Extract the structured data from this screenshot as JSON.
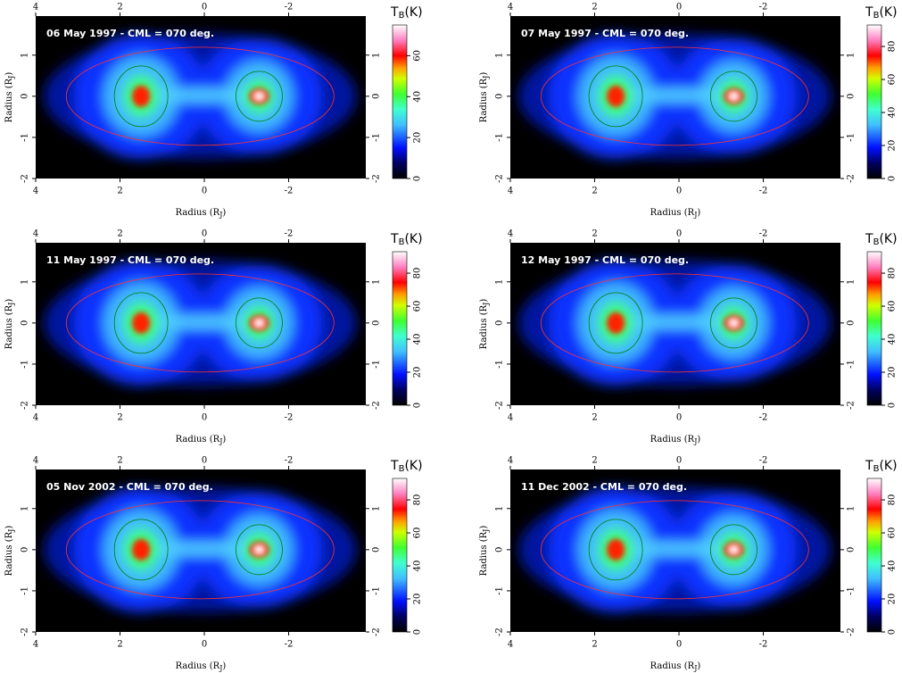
{
  "chart_data": [
    {
      "type": "heatmap",
      "title": "06 May 1997 - CML = 070 deg.",
      "xlabel": {
        "main": "Radius (R",
        "sub": "J",
        "end": ")"
      },
      "ylabel": {
        "main": "Radius (R",
        "sub": "J",
        "end": ")"
      },
      "xlim": [
        4,
        -3.83
      ],
      "xticks": [
        4,
        2,
        0,
        -2
      ],
      "ylim": [
        -2,
        1.95
      ],
      "yticks": [
        -2,
        -1,
        0,
        1
      ],
      "colorbar": {
        "label": {
          "main": "T",
          "sub": "B",
          "end": "(K)"
        },
        "lim": [
          0,
          75
        ],
        "ticks": [
          0,
          20,
          40,
          60
        ]
      }
    },
    {
      "type": "heatmap",
      "title": "07 May 1997 - CML = 070 deg.",
      "xlabel": {
        "main": "Radius (R",
        "sub": "J",
        "end": ")"
      },
      "ylabel": {
        "main": "Radius (R",
        "sub": "J",
        "end": ")"
      },
      "xlim": [
        4,
        -3.83
      ],
      "xticks": [
        4,
        2,
        0,
        -2
      ],
      "ylim": [
        -2,
        1.95
      ],
      "yticks": [
        -2,
        -1,
        0,
        1
      ],
      "colorbar": {
        "label": {
          "main": "T",
          "sub": "B",
          "end": "(K)"
        },
        "lim": [
          0,
          93
        ],
        "ticks": [
          0,
          20,
          40,
          60,
          80
        ]
      }
    },
    {
      "type": "heatmap",
      "title": "11 May 1997 - CML = 070 deg.",
      "xlabel": {
        "main": "Radius (R",
        "sub": "J",
        "end": ")"
      },
      "ylabel": {
        "main": "Radius (R",
        "sub": "J",
        "end": ")"
      },
      "xlim": [
        4,
        -3.83
      ],
      "xticks": [
        4,
        2,
        0,
        -2
      ],
      "ylim": [
        -2,
        1.95
      ],
      "yticks": [
        -2,
        -1,
        0,
        1
      ],
      "colorbar": {
        "label": {
          "main": "T",
          "sub": "B",
          "end": "(K)"
        },
        "lim": [
          0,
          93
        ],
        "ticks": [
          0,
          20,
          40,
          60,
          80
        ]
      }
    },
    {
      "type": "heatmap",
      "title": "12 May 1997 - CML = 070 deg.",
      "xlabel": {
        "main": "Radius (R",
        "sub": "J",
        "end": ")"
      },
      "ylabel": {
        "main": "Radius (R",
        "sub": "J",
        "end": ")"
      },
      "xlim": [
        4,
        -3.83
      ],
      "xticks": [
        4,
        2,
        0,
        -2
      ],
      "ylim": [
        -2,
        1.95
      ],
      "yticks": [
        -2,
        -1,
        0,
        1
      ],
      "colorbar": {
        "label": {
          "main": "T",
          "sub": "B",
          "end": "(K)"
        },
        "lim": [
          0,
          93
        ],
        "ticks": [
          0,
          20,
          40,
          60,
          80
        ]
      }
    },
    {
      "type": "heatmap",
      "title": "05 Nov 2002 - CML = 070 deg.",
      "xlabel": {
        "main": "Radius (R",
        "sub": "J",
        "end": ")"
      },
      "ylabel": {
        "main": "Radius (R",
        "sub": "J",
        "end": ")"
      },
      "xlim": [
        4,
        -3.83
      ],
      "xticks": [
        4,
        2,
        0,
        -2
      ],
      "ylim": [
        -2,
        1.95
      ],
      "yticks": [
        -2,
        -1,
        0,
        1
      ],
      "colorbar": {
        "label": {
          "main": "T",
          "sub": "B",
          "end": "(K)"
        },
        "lim": [
          0,
          93
        ],
        "ticks": [
          0,
          20,
          40,
          60,
          80
        ]
      }
    },
    {
      "type": "heatmap",
      "title": "11 Dec 2002 - CML = 070 deg.",
      "xlabel": {
        "main": "Radius (R",
        "sub": "J",
        "end": ")"
      },
      "ylabel": {
        "main": "Radius (R",
        "sub": "J",
        "end": ")"
      },
      "xlim": [
        4,
        -3.83
      ],
      "xticks": [
        4,
        2,
        0,
        -2
      ],
      "ylim": [
        -2,
        1.95
      ],
      "yticks": [
        -2,
        -1,
        0,
        1
      ],
      "colorbar": {
        "label": {
          "main": "T",
          "sub": "B",
          "end": "(K)"
        },
        "lim": [
          0,
          93
        ],
        "ticks": [
          0,
          20,
          40,
          60,
          80
        ]
      }
    }
  ]
}
